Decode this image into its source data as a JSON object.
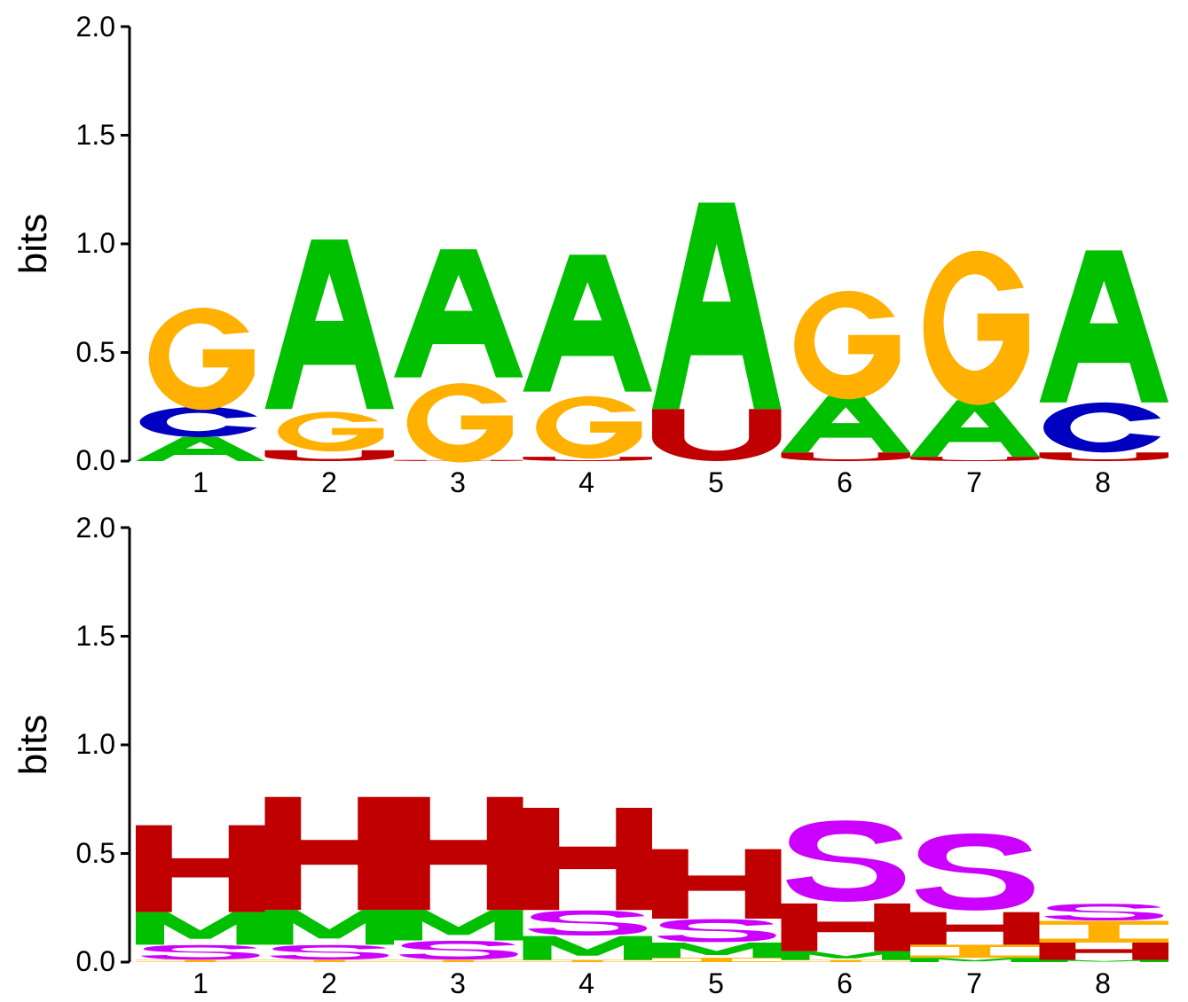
{
  "chart_data": [
    {
      "type": "sequence-logo",
      "ylabel": "bits",
      "ylim": [
        0,
        2
      ],
      "yticks": [
        "0.0",
        "0.5",
        "1.0",
        "1.5",
        "2.0"
      ],
      "positions": [
        "1",
        "2",
        "3",
        "4",
        "5",
        "6",
        "7",
        "8"
      ],
      "stacks": [
        [
          {
            "letter": "A",
            "color": "#00c000",
            "bits": 0.11
          },
          {
            "letter": "C",
            "color": "#0000c0",
            "bits": 0.14
          },
          {
            "letter": "G",
            "color": "#ffb000",
            "bits": 0.49
          }
        ],
        [
          {
            "letter": "U",
            "color": "#c00000",
            "bits": 0.05
          },
          {
            "letter": "G",
            "color": "#ffb000",
            "bits": 0.19
          },
          {
            "letter": "A",
            "color": "#00c000",
            "bits": 0.78
          }
        ],
        [
          {
            "letter": "U",
            "color": "#c00000",
            "bits": 0.005
          },
          {
            "letter": "G",
            "color": "#ffb000",
            "bits": 0.38
          },
          {
            "letter": "A",
            "color": "#00c000",
            "bits": 0.59
          }
        ],
        [
          {
            "letter": "U",
            "color": "#c00000",
            "bits": 0.02
          },
          {
            "letter": "G",
            "color": "#ffb000",
            "bits": 0.3
          },
          {
            "letter": "A",
            "color": "#00c000",
            "bits": 0.63
          }
        ],
        [
          {
            "letter": "U",
            "color": "#c00000",
            "bits": 0.24
          },
          {
            "letter": "A",
            "color": "#00c000",
            "bits": 0.95
          }
        ],
        [
          {
            "letter": "U",
            "color": "#c00000",
            "bits": 0.04
          },
          {
            "letter": "A",
            "color": "#00c000",
            "bits": 0.26
          },
          {
            "letter": "G",
            "color": "#ffb000",
            "bits": 0.52
          }
        ],
        [
          {
            "letter": "U",
            "color": "#c00000",
            "bits": 0.02
          },
          {
            "letter": "A",
            "color": "#00c000",
            "bits": 0.26
          },
          {
            "letter": "G",
            "color": "#ffb000",
            "bits": 0.74
          }
        ],
        [
          {
            "letter": "U",
            "color": "#c00000",
            "bits": 0.04
          },
          {
            "letter": "C",
            "color": "#0000c0",
            "bits": 0.23
          },
          {
            "letter": "A",
            "color": "#00c000",
            "bits": 0.7
          }
        ]
      ]
    },
    {
      "type": "sequence-logo",
      "ylabel": "bits",
      "ylim": [
        0,
        2
      ],
      "yticks": [
        "0.0",
        "0.5",
        "1.0",
        "1.5",
        "2.0"
      ],
      "positions": [
        "1",
        "2",
        "3",
        "4",
        "5",
        "6",
        "7",
        "8"
      ],
      "stacks": [
        [
          {
            "letter": "I",
            "color": "#ffb000",
            "bits": 0.01
          },
          {
            "letter": "S",
            "color": "#cc00ff",
            "bits": 0.07
          },
          {
            "letter": "M",
            "color": "#00c000",
            "bits": 0.15
          },
          {
            "letter": "H",
            "color": "#c00000",
            "bits": 0.4
          }
        ],
        [
          {
            "letter": "I",
            "color": "#ffb000",
            "bits": 0.01
          },
          {
            "letter": "S",
            "color": "#cc00ff",
            "bits": 0.07
          },
          {
            "letter": "M",
            "color": "#00c000",
            "bits": 0.16
          },
          {
            "letter": "H",
            "color": "#c00000",
            "bits": 0.52
          }
        ],
        [
          {
            "letter": "I",
            "color": "#ffb000",
            "bits": 0.01
          },
          {
            "letter": "S",
            "color": "#cc00ff",
            "bits": 0.09
          },
          {
            "letter": "M",
            "color": "#00c000",
            "bits": 0.14
          },
          {
            "letter": "H",
            "color": "#c00000",
            "bits": 0.52
          }
        ],
        [
          {
            "letter": "I",
            "color": "#ffb000",
            "bits": 0.01
          },
          {
            "letter": "M",
            "color": "#00c000",
            "bits": 0.11
          },
          {
            "letter": "S",
            "color": "#cc00ff",
            "bits": 0.12
          },
          {
            "letter": "H",
            "color": "#c00000",
            "bits": 0.47
          }
        ],
        [
          {
            "letter": "I",
            "color": "#ffb000",
            "bits": 0.02
          },
          {
            "letter": "M",
            "color": "#00c000",
            "bits": 0.07
          },
          {
            "letter": "S",
            "color": "#cc00ff",
            "bits": 0.11
          },
          {
            "letter": "H",
            "color": "#c00000",
            "bits": 0.32
          }
        ],
        [
          {
            "letter": "I",
            "color": "#ffb000",
            "bits": 0.01
          },
          {
            "letter": "M",
            "color": "#00c000",
            "bits": 0.04
          },
          {
            "letter": "H",
            "color": "#c00000",
            "bits": 0.22
          },
          {
            "letter": "S",
            "color": "#cc00ff",
            "bits": 0.39
          }
        ],
        [
          {
            "letter": "M",
            "color": "#00c000",
            "bits": 0.02
          },
          {
            "letter": "I",
            "color": "#ffb000",
            "bits": 0.06
          },
          {
            "letter": "H",
            "color": "#c00000",
            "bits": 0.15
          },
          {
            "letter": "S",
            "color": "#cc00ff",
            "bits": 0.37
          }
        ],
        [
          {
            "letter": "M",
            "color": "#00c000",
            "bits": 0.01
          },
          {
            "letter": "H",
            "color": "#c00000",
            "bits": 0.08
          },
          {
            "letter": "I",
            "color": "#ffb000",
            "bits": 0.1
          },
          {
            "letter": "S",
            "color": "#cc00ff",
            "bits": 0.08
          }
        ]
      ]
    }
  ]
}
